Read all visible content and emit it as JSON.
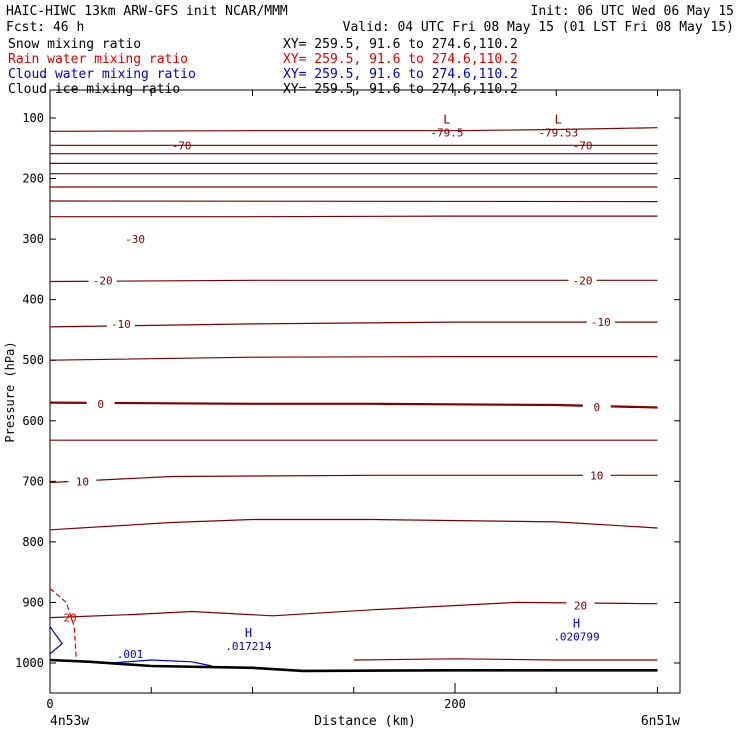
{
  "header": {
    "title_left": "HAIC-HIWC 13km ARW-GFS init   NCAR/MMM",
    "forecast": "Fcst:    46 h",
    "init": "Init: 06 UTC Wed 06 May 15",
    "valid": "Valid: 04 UTC Fri 08 May 15 (01 LST Fri 08 May 15)",
    "fields": [
      {
        "name": "Snow mixing ratio",
        "xy": "XY= 259.5, 91.6 to 274.6,110.2",
        "color": "#000000"
      },
      {
        "name": "Rain water mixing ratio",
        "xy": "XY= 259.5, 91.6 to 274.6,110.2",
        "color": "#dd0000"
      },
      {
        "name": "Cloud water mixing ratio",
        "xy": "XY= 259.5, 91.6 to 274.6,110.2",
        "color": "#0000cc"
      },
      {
        "name": "Cloud ice mixing ratio",
        "xy": "XY= 259.5, 91.6 to 274.6,110.2",
        "color": "#000000"
      }
    ]
  },
  "colors": {
    "temperature": "#7f0000",
    "rain": "#dd0000",
    "cloud_water": "#0000cc",
    "terrain": "#000000",
    "frame": "#000000"
  },
  "chart_data": {
    "type": "line",
    "xlabel": "Distance (km)",
    "ylabel": "Pressure (hPa)",
    "x_start_label": "4n53w",
    "x_end_label": "6n51w",
    "xlim": [
      0,
      300
    ],
    "ylim": [
      1050,
      75
    ],
    "x_ticks": [
      0,
      200
    ],
    "y_ticks": [
      100,
      200,
      300,
      400,
      500,
      600,
      700,
      800,
      900,
      1000
    ],
    "isotherms": [
      {
        "label": "-70",
        "points": [
          [
            0,
            122
          ],
          [
            100,
            121
          ],
          [
            200,
            121
          ],
          [
            250,
            119
          ],
          [
            300,
            116
          ]
        ],
        "labels": [
          [
            65,
            145
          ],
          [
            263,
            145
          ]
        ]
      },
      {
        "label": "",
        "points": [
          [
            0,
            145
          ],
          [
            300,
            145
          ]
        ]
      },
      {
        "label": "",
        "points": [
          [
            0,
            159
          ],
          [
            300,
            159
          ]
        ]
      },
      {
        "label": "",
        "points": [
          [
            0,
            175
          ],
          [
            300,
            175
          ]
        ]
      },
      {
        "label": "",
        "points": [
          [
            0,
            192
          ],
          [
            300,
            192
          ]
        ]
      },
      {
        "label": "",
        "points": [
          [
            0,
            214
          ],
          [
            300,
            214
          ]
        ]
      },
      {
        "label": "",
        "points": [
          [
            0,
            237
          ],
          [
            300,
            238
          ]
        ]
      },
      {
        "label": "-30",
        "points": [
          [
            0,
            263
          ],
          [
            100,
            263
          ],
          [
            200,
            262
          ],
          [
            300,
            262
          ]
        ],
        "labels": [
          [
            42,
            300
          ]
        ]
      },
      {
        "label": "-20",
        "points": [
          [
            0,
            370
          ],
          [
            100,
            368
          ],
          [
            200,
            368
          ],
          [
            300,
            368
          ]
        ],
        "labels": [
          [
            26,
            368
          ],
          [
            263,
            368
          ]
        ]
      },
      {
        "label": "-10",
        "points": [
          [
            0,
            445
          ],
          [
            100,
            440
          ],
          [
            200,
            437
          ],
          [
            300,
            437
          ]
        ],
        "labels": [
          [
            35,
            440
          ],
          [
            272,
            437
          ]
        ]
      },
      {
        "label": "",
        "points": [
          [
            0,
            500
          ],
          [
            100,
            495
          ],
          [
            200,
            494
          ],
          [
            300,
            494
          ]
        ]
      },
      {
        "label": "0",
        "points": [
          [
            0,
            570
          ],
          [
            100,
            572
          ],
          [
            160,
            572
          ],
          [
            250,
            574
          ],
          [
            300,
            578
          ]
        ],
        "labels": [
          [
            25,
            572
          ],
          [
            270,
            577
          ]
        ]
      },
      {
        "label": "",
        "points": [
          [
            0,
            632
          ],
          [
            100,
            632
          ],
          [
            200,
            632
          ],
          [
            300,
            632
          ]
        ]
      },
      {
        "label": "10",
        "points": [
          [
            0,
            702
          ],
          [
            60,
            692
          ],
          [
            160,
            690
          ],
          [
            300,
            690
          ]
        ],
        "labels": [
          [
            16,
            700
          ],
          [
            270,
            690
          ]
        ]
      },
      {
        "label": "",
        "points": [
          [
            0,
            780
          ],
          [
            60,
            768
          ],
          [
            100,
            763
          ],
          [
            160,
            763
          ],
          [
            250,
            767
          ],
          [
            300,
            777
          ]
        ]
      },
      {
        "label": "20",
        "points": [
          [
            0,
            925
          ],
          [
            40,
            920
          ],
          [
            70,
            915
          ],
          [
            110,
            922
          ],
          [
            160,
            912
          ],
          [
            230,
            900
          ],
          [
            300,
            902
          ]
        ],
        "labels": [
          [
            262,
            905
          ]
        ]
      },
      {
        "label": "",
        "points": [
          [
            150,
            995
          ],
          [
            200,
            993
          ],
          [
            250,
            995
          ],
          [
            300,
            995
          ]
        ]
      }
    ],
    "rain_contour": {
      "label": "20",
      "points": [
        [
          0,
          877
        ],
        [
          8,
          900
        ],
        [
          12,
          940
        ],
        [
          13,
          995
        ]
      ],
      "label_at": [
        [
          8,
          925
        ]
      ]
    },
    "cloud_water": {
      "label": ".001",
      "points": [
        [
          30,
          1000
        ],
        [
          50,
          995
        ],
        [
          70,
          998
        ],
        [
          80,
          1005
        ]
      ],
      "label_at": [
        [
          32,
          985
        ]
      ],
      "left_hook": [
        [
          0,
          940
        ],
        [
          6,
          968
        ],
        [
          0,
          985
        ]
      ]
    },
    "terrain": [
      [
        0,
        995
      ],
      [
        20,
        998
      ],
      [
        50,
        1005
      ],
      [
        100,
        1008
      ],
      [
        125,
        1013
      ],
      [
        200,
        1012
      ],
      [
        250,
        1012
      ],
      [
        300,
        1012
      ]
    ],
    "extrema": [
      {
        "type": "L",
        "value": "-79.5",
        "x": 196,
        "p": 112,
        "color": "#7f0000"
      },
      {
        "type": "L",
        "value": "-79.53",
        "x": 251,
        "p": 112,
        "color": "#7f0000"
      },
      {
        "type": "H",
        "value": ".017214",
        "x": 98,
        "p": 960,
        "color": "#0000cc"
      },
      {
        "type": "H",
        "value": ".020799",
        "x": 260,
        "p": 945,
        "color": "#0000cc"
      }
    ]
  }
}
